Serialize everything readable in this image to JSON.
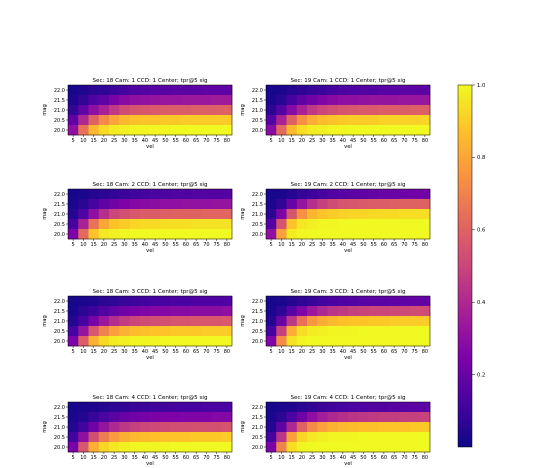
{
  "chart_data": {
    "type": "heatmap",
    "xlabel": "vel",
    "ylabel": "mag",
    "x_ticks": [
      "5",
      "10",
      "15",
      "20",
      "25",
      "30",
      "35",
      "40",
      "45",
      "50",
      "55",
      "60",
      "65",
      "70",
      "75",
      "80"
    ],
    "y_ticks": [
      "22.0",
      "21.5",
      "21.0",
      "20.5",
      "20.0"
    ],
    "colorbar": {
      "min": 0.0,
      "max": 1.0,
      "ticks": [
        "0.2",
        "0.4",
        "0.6",
        "0.8",
        "1.0"
      ],
      "tick_values": [
        0.2,
        0.4,
        0.6,
        0.8,
        1.0
      ],
      "colormap": "plasma"
    },
    "panels": [
      {
        "title": "Sec: 18 Cam: 1 CCD: 1 Center; tpr@5 sig",
        "values": [
          [
            0.02,
            0.04,
            0.06,
            0.08,
            0.1,
            0.12,
            0.14,
            0.15,
            0.16,
            0.16,
            0.17,
            0.17,
            0.17,
            0.18,
            0.18,
            0.18
          ],
          [
            0.04,
            0.08,
            0.14,
            0.18,
            0.24,
            0.28,
            0.3,
            0.31,
            0.32,
            0.33,
            0.33,
            0.34,
            0.34,
            0.34,
            0.35,
            0.35
          ],
          [
            0.08,
            0.18,
            0.3,
            0.38,
            0.46,
            0.52,
            0.55,
            0.56,
            0.57,
            0.58,
            0.58,
            0.58,
            0.59,
            0.59,
            0.59,
            0.6
          ],
          [
            0.18,
            0.4,
            0.6,
            0.72,
            0.8,
            0.85,
            0.87,
            0.88,
            0.88,
            0.89,
            0.89,
            0.9,
            0.9,
            0.9,
            0.9,
            0.9
          ],
          [
            0.3,
            0.65,
            0.85,
            0.93,
            0.97,
            0.98,
            0.99,
            0.99,
            0.99,
            0.99,
            1.0,
            1.0,
            1.0,
            1.0,
            1.0,
            1.0
          ]
        ]
      },
      {
        "title": "Sec: 19 Cam: 1 CCD: 1 Center; tpr@5 sig",
        "values": [
          [
            0.02,
            0.03,
            0.05,
            0.07,
            0.09,
            0.1,
            0.12,
            0.13,
            0.14,
            0.15,
            0.15,
            0.16,
            0.16,
            0.17,
            0.17,
            0.17
          ],
          [
            0.03,
            0.06,
            0.12,
            0.18,
            0.22,
            0.26,
            0.28,
            0.3,
            0.3,
            0.31,
            0.32,
            0.32,
            0.32,
            0.33,
            0.33,
            0.33
          ],
          [
            0.06,
            0.15,
            0.28,
            0.38,
            0.46,
            0.5,
            0.53,
            0.55,
            0.56,
            0.57,
            0.57,
            0.58,
            0.58,
            0.58,
            0.59,
            0.59
          ],
          [
            0.15,
            0.38,
            0.6,
            0.74,
            0.82,
            0.86,
            0.88,
            0.89,
            0.9,
            0.9,
            0.9,
            0.91,
            0.91,
            0.91,
            0.91,
            0.92
          ],
          [
            0.28,
            0.62,
            0.85,
            0.94,
            0.97,
            0.98,
            0.99,
            0.99,
            1.0,
            1.0,
            1.0,
            1.0,
            1.0,
            1.0,
            1.0,
            1.0
          ]
        ]
      },
      {
        "title": "Sec: 18 Cam: 2 CCD: 1 Center; tpr@5 sig",
        "values": [
          [
            0.02,
            0.03,
            0.05,
            0.06,
            0.08,
            0.1,
            0.11,
            0.12,
            0.13,
            0.13,
            0.14,
            0.14,
            0.15,
            0.15,
            0.15,
            0.15
          ],
          [
            0.03,
            0.06,
            0.12,
            0.18,
            0.22,
            0.25,
            0.27,
            0.28,
            0.29,
            0.3,
            0.3,
            0.31,
            0.31,
            0.31,
            0.32,
            0.32
          ],
          [
            0.05,
            0.14,
            0.3,
            0.42,
            0.5,
            0.54,
            0.56,
            0.58,
            0.58,
            0.59,
            0.6,
            0.6,
            0.6,
            0.61,
            0.61,
            0.61
          ],
          [
            0.12,
            0.38,
            0.65,
            0.8,
            0.88,
            0.9,
            0.92,
            0.93,
            0.93,
            0.94,
            0.94,
            0.94,
            0.95,
            0.95,
            0.95,
            0.95
          ],
          [
            0.25,
            0.62,
            0.88,
            0.96,
            0.98,
            0.99,
            1.0,
            1.0,
            1.0,
            1.0,
            1.0,
            1.0,
            1.0,
            1.0,
            1.0,
            1.0
          ]
        ]
      },
      {
        "title": "Sec: 19 Cam: 2 CCD: 1 Center; tpr@5 sig",
        "values": [
          [
            0.02,
            0.03,
            0.05,
            0.08,
            0.1,
            0.12,
            0.14,
            0.16,
            0.17,
            0.18,
            0.19,
            0.2,
            0.2,
            0.21,
            0.22,
            0.22
          ],
          [
            0.03,
            0.08,
            0.2,
            0.32,
            0.42,
            0.48,
            0.52,
            0.55,
            0.56,
            0.57,
            0.58,
            0.58,
            0.59,
            0.6,
            0.6,
            0.6
          ],
          [
            0.06,
            0.25,
            0.55,
            0.74,
            0.84,
            0.88,
            0.9,
            0.91,
            0.92,
            0.92,
            0.93,
            0.93,
            0.93,
            0.94,
            0.94,
            0.94
          ],
          [
            0.15,
            0.55,
            0.88,
            0.96,
            0.98,
            0.99,
            0.99,
            1.0,
            1.0,
            1.0,
            1.0,
            1.0,
            1.0,
            1.0,
            1.0,
            1.0
          ],
          [
            0.3,
            0.78,
            0.97,
            0.99,
            1.0,
            1.0,
            1.0,
            1.0,
            1.0,
            1.0,
            1.0,
            1.0,
            1.0,
            1.0,
            1.0,
            1.0
          ]
        ]
      },
      {
        "title": "Sec: 18 Cam: 3 CCD: 1 Center; tpr@5 sig",
        "values": [
          [
            0.02,
            0.03,
            0.04,
            0.06,
            0.07,
            0.09,
            0.1,
            0.11,
            0.12,
            0.12,
            0.13,
            0.13,
            0.14,
            0.14,
            0.14,
            0.14
          ],
          [
            0.03,
            0.06,
            0.1,
            0.15,
            0.19,
            0.22,
            0.24,
            0.26,
            0.27,
            0.27,
            0.28,
            0.28,
            0.29,
            0.29,
            0.29,
            0.3
          ],
          [
            0.05,
            0.12,
            0.24,
            0.34,
            0.42,
            0.47,
            0.5,
            0.52,
            0.53,
            0.54,
            0.55,
            0.55,
            0.56,
            0.56,
            0.56,
            0.57
          ],
          [
            0.12,
            0.32,
            0.56,
            0.7,
            0.78,
            0.83,
            0.86,
            0.87,
            0.88,
            0.88,
            0.89,
            0.89,
            0.89,
            0.9,
            0.9,
            0.9
          ],
          [
            0.25,
            0.58,
            0.83,
            0.93,
            0.97,
            0.98,
            0.99,
            0.99,
            0.99,
            1.0,
            1.0,
            1.0,
            1.0,
            1.0,
            1.0,
            1.0
          ]
        ]
      },
      {
        "title": "Sec: 19 Cam: 3 CCD: 1 Center; tpr@5 sig",
        "values": [
          [
            0.02,
            0.03,
            0.05,
            0.07,
            0.09,
            0.11,
            0.13,
            0.14,
            0.15,
            0.16,
            0.17,
            0.17,
            0.18,
            0.18,
            0.19,
            0.19
          ],
          [
            0.03,
            0.07,
            0.16,
            0.26,
            0.34,
            0.4,
            0.44,
            0.46,
            0.48,
            0.49,
            0.5,
            0.5,
            0.51,
            0.51,
            0.52,
            0.52
          ],
          [
            0.05,
            0.2,
            0.45,
            0.65,
            0.76,
            0.82,
            0.85,
            0.87,
            0.88,
            0.88,
            0.89,
            0.89,
            0.9,
            0.9,
            0.9,
            0.9
          ],
          [
            0.12,
            0.48,
            0.82,
            0.94,
            0.97,
            0.98,
            0.99,
            0.99,
            0.99,
            1.0,
            1.0,
            1.0,
            1.0,
            1.0,
            1.0,
            1.0
          ],
          [
            0.26,
            0.72,
            0.95,
            0.99,
            1.0,
            1.0,
            1.0,
            1.0,
            1.0,
            1.0,
            1.0,
            1.0,
            1.0,
            1.0,
            1.0,
            1.0
          ]
        ]
      },
      {
        "title": "Sec: 18 Cam: 4 CCD: 1 Center; tpr@5 sig",
        "values": [
          [
            0.02,
            0.03,
            0.04,
            0.05,
            0.07,
            0.08,
            0.09,
            0.1,
            0.11,
            0.11,
            0.12,
            0.12,
            0.12,
            0.13,
            0.13,
            0.13
          ],
          [
            0.03,
            0.05,
            0.09,
            0.13,
            0.17,
            0.2,
            0.22,
            0.23,
            0.24,
            0.25,
            0.25,
            0.26,
            0.26,
            0.26,
            0.27,
            0.27
          ],
          [
            0.05,
            0.11,
            0.22,
            0.32,
            0.4,
            0.45,
            0.48,
            0.5,
            0.51,
            0.52,
            0.53,
            0.53,
            0.54,
            0.54,
            0.54,
            0.55
          ],
          [
            0.11,
            0.3,
            0.53,
            0.68,
            0.77,
            0.82,
            0.85,
            0.86,
            0.87,
            0.88,
            0.88,
            0.88,
            0.89,
            0.89,
            0.89,
            0.9
          ],
          [
            0.24,
            0.56,
            0.82,
            0.92,
            0.96,
            0.98,
            0.99,
            0.99,
            0.99,
            0.99,
            1.0,
            1.0,
            1.0,
            1.0,
            1.0,
            1.0
          ]
        ]
      },
      {
        "title": "Sec: 19 Cam: 4 CCD: 1 Center; tpr@5 sig",
        "values": [
          [
            0.02,
            0.03,
            0.04,
            0.06,
            0.08,
            0.1,
            0.11,
            0.12,
            0.13,
            0.14,
            0.15,
            0.15,
            0.16,
            0.16,
            0.17,
            0.17
          ],
          [
            0.03,
            0.06,
            0.13,
            0.22,
            0.3,
            0.36,
            0.4,
            0.42,
            0.44,
            0.45,
            0.46,
            0.47,
            0.47,
            0.48,
            0.48,
            0.49
          ],
          [
            0.05,
            0.18,
            0.4,
            0.6,
            0.72,
            0.79,
            0.83,
            0.85,
            0.86,
            0.87,
            0.87,
            0.88,
            0.88,
            0.88,
            0.89,
            0.89
          ],
          [
            0.12,
            0.44,
            0.78,
            0.92,
            0.96,
            0.98,
            0.99,
            0.99,
            0.99,
            1.0,
            1.0,
            1.0,
            1.0,
            1.0,
            1.0,
            1.0
          ],
          [
            0.25,
            0.7,
            0.94,
            0.99,
            1.0,
            1.0,
            1.0,
            1.0,
            1.0,
            1.0,
            1.0,
            1.0,
            1.0,
            1.0,
            1.0,
            1.0
          ]
        ]
      }
    ]
  }
}
